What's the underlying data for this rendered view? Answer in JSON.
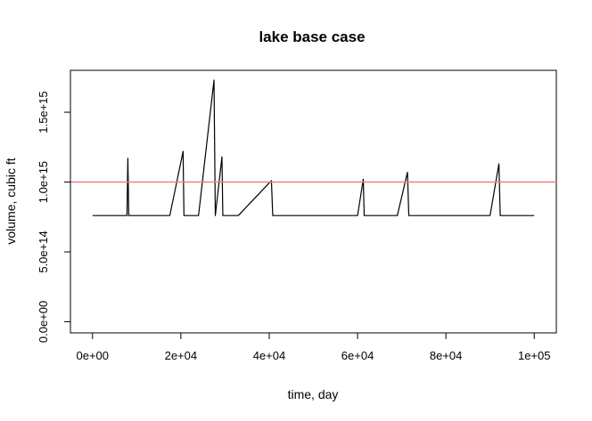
{
  "chart_data": {
    "type": "line",
    "title": "lake base case",
    "xlabel": "time, day",
    "ylabel": "volume, cubic ft",
    "xlim": [
      -5000,
      105000
    ],
    "ylim": [
      -80000000000000.0,
      1800000000000000.0
    ],
    "grid": false,
    "x_ticks": [
      0,
      20000,
      40000,
      60000,
      80000,
      100000
    ],
    "x_tick_labels": [
      "0e+00",
      "2e+04",
      "4e+04",
      "6e+04",
      "8e+04",
      "1e+05"
    ],
    "y_ticks": [
      0,
      500000000000000,
      1000000000000000,
      1500000000000000
    ],
    "y_tick_labels": [
      "0.0e+00",
      "5.0e+14",
      "1.0e+15",
      "1.5e+15"
    ],
    "series": [
      {
        "color": "#000000",
        "x": [
          0,
          3000,
          7800,
          8000,
          8200,
          12000,
          17500,
          20500,
          20700,
          24000,
          27500,
          27800,
          29300,
          29500,
          33000,
          40500,
          40800,
          45000,
          48000,
          54000,
          60000,
          61300,
          61500,
          65000,
          69000,
          71300,
          71600,
          75000,
          78000,
          83000,
          84000,
          87000,
          90000,
          92000,
          92300,
          95000,
          97500,
          100000
        ],
        "y": [
          760000000000000,
          760000000000000,
          760000000000000,
          1170000000000000,
          760000000000000,
          760000000000000,
          760000000000000,
          1220000000000000,
          760000000000000,
          760000000000000,
          1730000000000000,
          760000000000000,
          1180000000000000,
          760000000000000,
          760000000000000,
          1010000000000000,
          760000000000000,
          760000000000000,
          760000000000000,
          760000000000000,
          760000000000000,
          1020000000000000,
          760000000000000,
          760000000000000,
          760000000000000,
          1070000000000000,
          760000000000000,
          760000000000000,
          760000000000000,
          760000000000000,
          760000000000000,
          760000000000000,
          760000000000000,
          1130000000000000,
          760000000000000,
          760000000000000,
          760000000000000,
          760000000000000
        ]
      }
    ],
    "reference_lines": [
      {
        "orientation": "horizontal",
        "y": 1000000000000000,
        "color": "#f08080"
      }
    ]
  }
}
